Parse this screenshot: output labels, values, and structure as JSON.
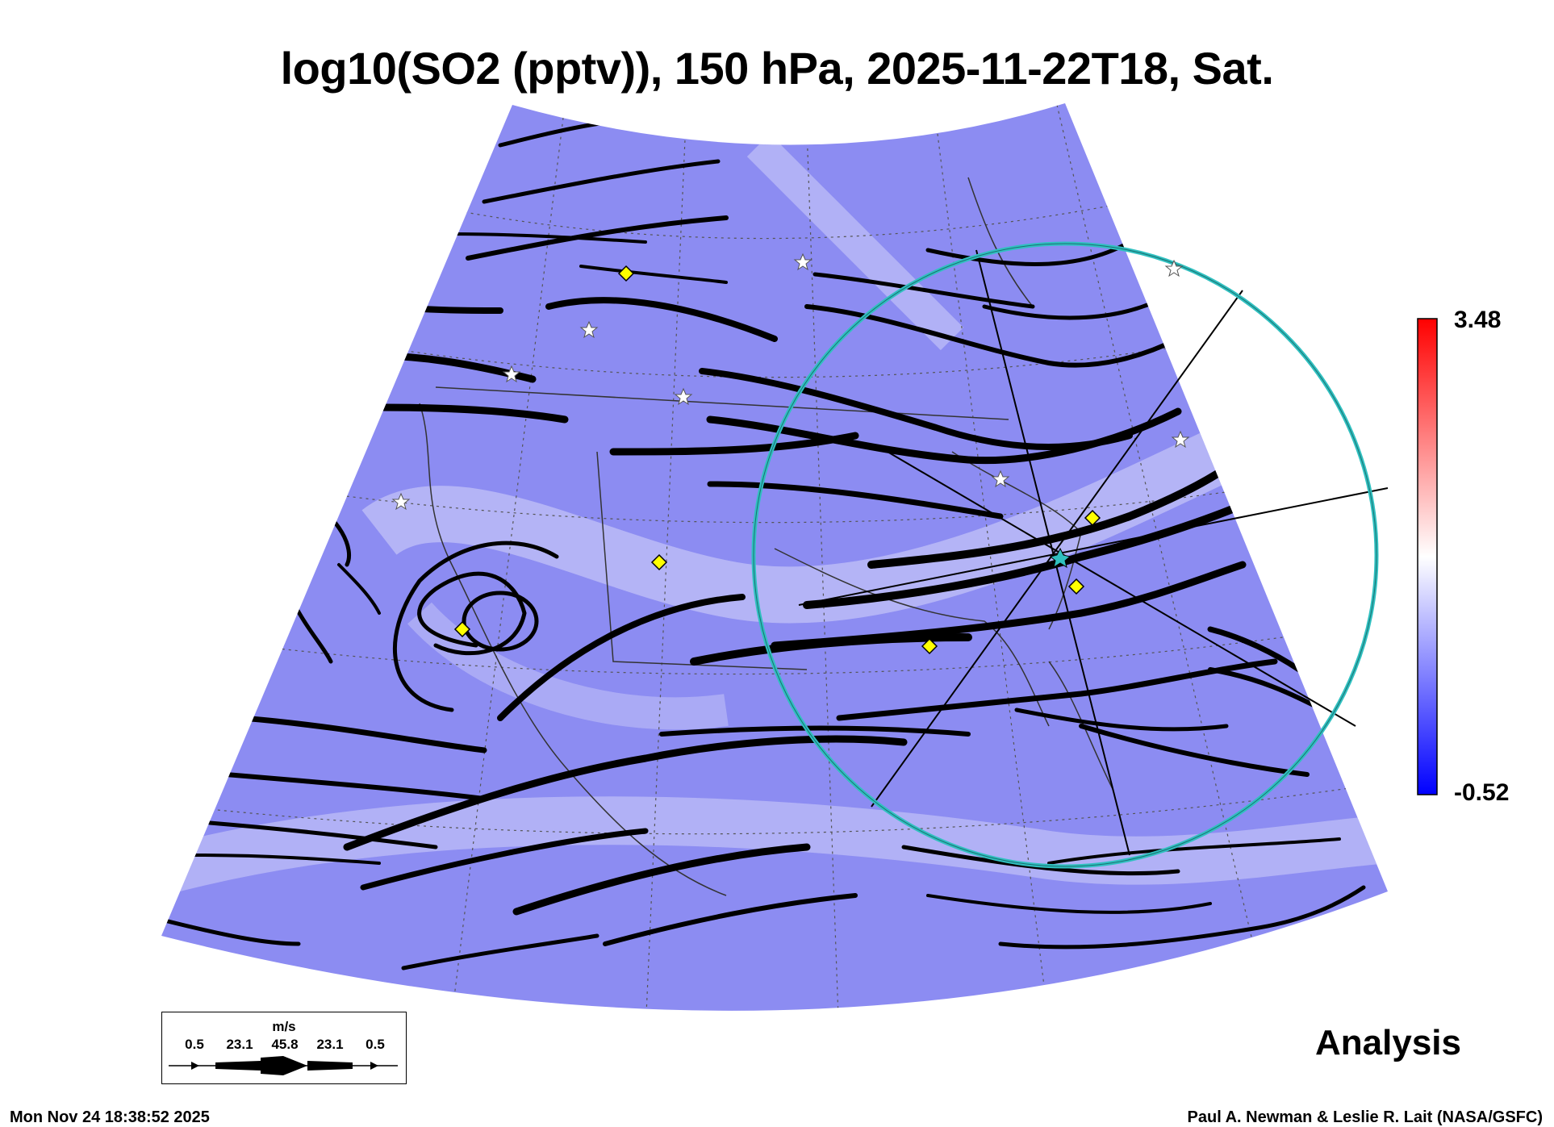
{
  "title": "log10(SO2 (pptv)), 150 hPa, 2025-11-22T18, Sat.",
  "colorbar": {
    "max_label": "3.48",
    "min_label": "-0.52",
    "colors": [
      "#0000ff",
      "#8080ff",
      "#ffffff",
      "#ff8080",
      "#ff0000"
    ]
  },
  "map": {
    "field_color": "#8c8cf2",
    "field_light_color": "#d6d6fa",
    "circle_color": "#30c0c0",
    "marker_color": "#ffff00",
    "star_color": "#ffffff"
  },
  "legend": {
    "unit": "m/s",
    "speeds": [
      "0.5",
      "23.1",
      "45.8",
      "23.1",
      "0.5"
    ]
  },
  "label": "Analysis",
  "footer": {
    "timestamp": "Mon Nov 24 18:38:52 2025",
    "credit": "Paul A. Newman & Leslie R. Lait (NASA/GSFC)"
  }
}
